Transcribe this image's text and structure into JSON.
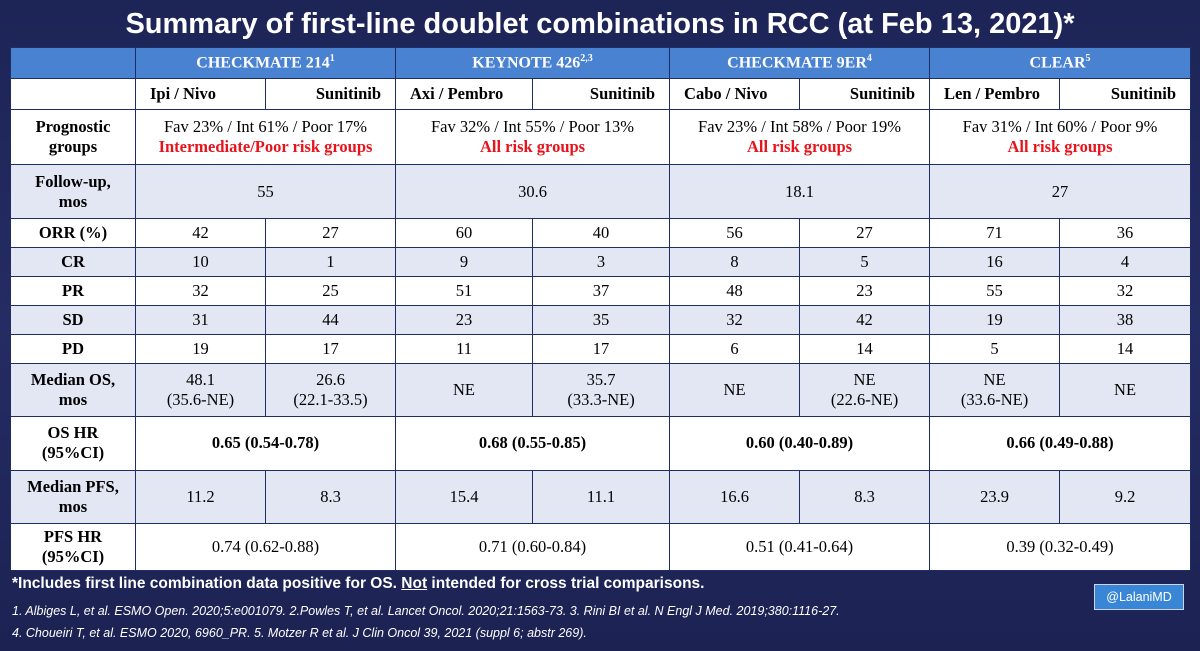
{
  "title": "Summary of first-line doublet combinations in RCC (at Feb 13, 2021)*",
  "trials": [
    {
      "name": "CHECKMATE 214",
      "sup": "1",
      "arm1": "Ipi / Nivo",
      "arm2": "Sunitinib",
      "prognostic": "Fav 23% / Int 61% / Poor 17%",
      "risk": "Intermediate/Poor risk groups",
      "followup": "55",
      "orr": [
        "42",
        "27"
      ],
      "cr": [
        "10",
        "1"
      ],
      "pr": [
        "32",
        "25"
      ],
      "sd": [
        "31",
        "44"
      ],
      "pd": [
        "19",
        "17"
      ],
      "os": [
        {
          "v": "48.1",
          "ci": "(35.6-NE)"
        },
        {
          "v": "26.6",
          "ci": "(22.1-33.5)"
        }
      ],
      "os_hr": "0.65 (0.54-0.78)",
      "pfs": [
        "11.2",
        "8.3"
      ],
      "pfs_hr": "0.74 (0.62-0.88)"
    },
    {
      "name": "KEYNOTE 426",
      "sup": "2,3",
      "arm1": "Axi / Pembro",
      "arm2": "Sunitinib",
      "prognostic": "Fav 32% / Int 55% / Poor 13%",
      "risk": "All risk groups",
      "followup": "30.6",
      "orr": [
        "60",
        "40"
      ],
      "cr": [
        "9",
        "3"
      ],
      "pr": [
        "51",
        "37"
      ],
      "sd": [
        "23",
        "35"
      ],
      "pd": [
        "11",
        "17"
      ],
      "os": [
        {
          "v": "NE",
          "ci": ""
        },
        {
          "v": "35.7",
          "ci": "(33.3-NE)"
        }
      ],
      "os_hr": "0.68 (0.55-0.85)",
      "pfs": [
        "15.4",
        "11.1"
      ],
      "pfs_hr": "0.71 (0.60-0.84)"
    },
    {
      "name": "CHECKMATE 9ER",
      "sup": "4",
      "arm1": "Cabo / Nivo",
      "arm2": "Sunitinib",
      "prognostic": "Fav 23% / Int 58% / Poor 19%",
      "risk": "All risk groups",
      "followup": "18.1",
      "orr": [
        "56",
        "27"
      ],
      "cr": [
        "8",
        "5"
      ],
      "pr": [
        "48",
        "23"
      ],
      "sd": [
        "32",
        "42"
      ],
      "pd": [
        "6",
        "14"
      ],
      "os": [
        {
          "v": "NE",
          "ci": ""
        },
        {
          "v": "NE",
          "ci": "(22.6-NE)"
        }
      ],
      "os_hr": "0.60 (0.40-0.89)",
      "pfs": [
        "16.6",
        "8.3"
      ],
      "pfs_hr": "0.51 (0.41-0.64)"
    },
    {
      "name": "CLEAR",
      "sup": "5",
      "arm1": "Len / Pembro",
      "arm2": "Sunitinib",
      "prognostic": "Fav 31% / Int 60% / Poor 9%",
      "risk": "All risk groups",
      "followup": "27",
      "orr": [
        "71",
        "36"
      ],
      "cr": [
        "16",
        "4"
      ],
      "pr": [
        "55",
        "32"
      ],
      "sd": [
        "19",
        "38"
      ],
      "pd": [
        "5",
        "14"
      ],
      "os": [
        {
          "v": "NE",
          "ci": "(33.6-NE)"
        },
        {
          "v": "NE",
          "ci": ""
        }
      ],
      "os_hr": "0.66 (0.49-0.88)",
      "pfs": [
        "23.9",
        "9.2"
      ],
      "pfs_hr": "0.39 (0.32-0.49)"
    }
  ],
  "row_labels": {
    "prognostic": [
      "Prognostic",
      "groups"
    ],
    "followup": [
      "Follow-up,",
      "mos"
    ],
    "orr": "ORR (%)",
    "cr": "CR",
    "pr": "PR",
    "sd": "SD",
    "pd": "PD",
    "os": [
      "Median OS,",
      "mos"
    ],
    "os_hr": [
      "OS HR",
      "(95%CI)"
    ],
    "pfs": [
      "Median PFS,",
      "mos"
    ],
    "pfs_hr": [
      "PFS HR",
      "(95%CI)"
    ]
  },
  "footnote": {
    "part1": "*Includes first line combination data positive for OS. ",
    "underlined": "Not",
    "part2": " intended for cross trial comparisons."
  },
  "references": [
    "1. Albiges L, et al. ESMO Open. 2020;5:e001079. 2.Powles T, et al. Lancet Oncol. 2020;21:1563-73. 3. Rini BI et al. N Engl J Med. 2019;380:1116-27.",
    "4. Choueiri T, et al. ESMO 2020, 6960_PR. 5. Motzer R et al. J Clin Oncol 39, 2021 (suppl 6; abstr 269)."
  ],
  "handle": "@LalaniMD",
  "colors": {
    "header_blue": "#4a82d2",
    "risk_red": "#e8141c",
    "band": "#e2e7f3",
    "background": "#1d2456"
  }
}
